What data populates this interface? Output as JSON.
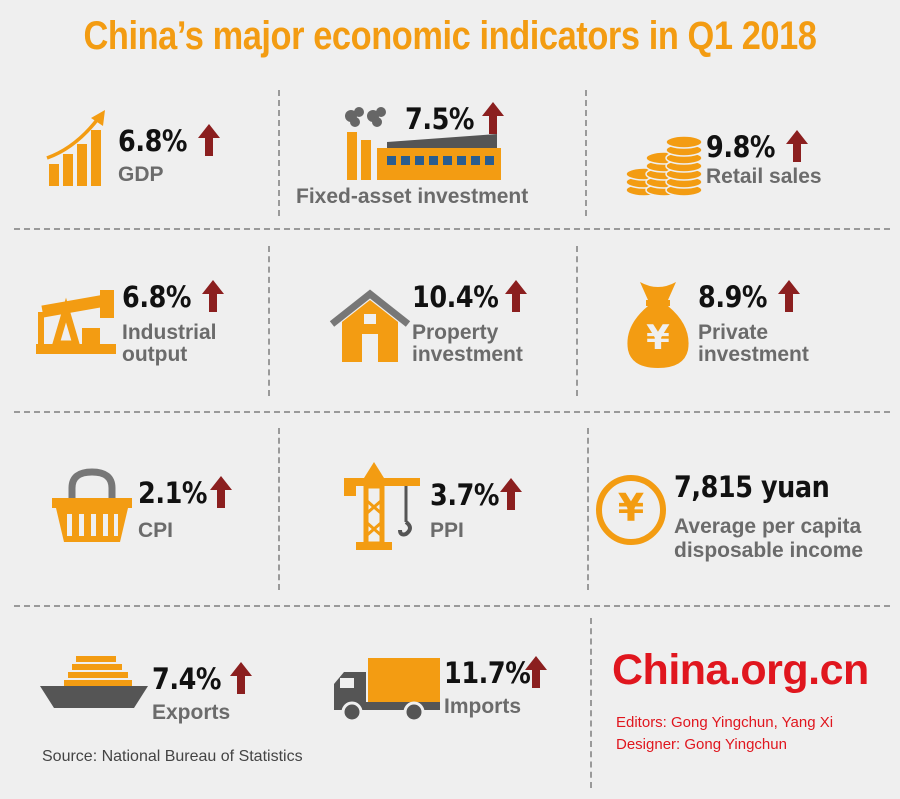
{
  "title": "China’s major economic indicators in Q1 2018",
  "colors": {
    "accent": "#f39c12",
    "arrow": "#8b1f1f",
    "label": "#6b6b6b",
    "brand": "#e0161e",
    "icon_dark": "#555555"
  },
  "indicators": [
    {
      "value": "6.8%",
      "label": "GDP",
      "icon": "growth-bars-icon",
      "trend": "up"
    },
    {
      "value": "7.5%",
      "label": "Fixed-asset investment",
      "icon": "factory-icon",
      "trend": "up"
    },
    {
      "value": "9.8%",
      "label": "Retail sales",
      "icon": "coins-icon",
      "trend": "up"
    },
    {
      "value": "6.8%",
      "label_line1": "Industrial",
      "label_line2": "output",
      "icon": "oil-pump-icon",
      "trend": "up"
    },
    {
      "value": "10.4%",
      "label_line1": "Property",
      "label_line2": "investment",
      "icon": "house-icon",
      "trend": "up"
    },
    {
      "value": "8.9%",
      "label_line1": "Private",
      "label_line2": "investment",
      "icon": "money-bag-icon",
      "trend": "up"
    },
    {
      "value": "2.1%",
      "label": "CPI",
      "icon": "basket-icon",
      "trend": "up"
    },
    {
      "value": "3.7%",
      "label": "PPI",
      "icon": "crane-icon",
      "trend": "up"
    },
    {
      "value": "7,815 yuan",
      "label_line1": "Average per capita",
      "label_line2": "disposable income",
      "icon": "yuan-coin-icon"
    },
    {
      "value": "7.4%",
      "label": "Exports",
      "icon": "ship-icon",
      "trend": "up"
    },
    {
      "value": "11.7%",
      "label": "Imports",
      "icon": "truck-icon",
      "trend": "up"
    }
  ],
  "source": "Source: National Bureau of Statistics",
  "brand": "China.org.cn",
  "credits": {
    "editors": "Editors: Gong Yingchun, Yang Xi",
    "designer": "Designer: Gong Yingchun"
  },
  "symbols": {
    "yuan": "¥"
  }
}
